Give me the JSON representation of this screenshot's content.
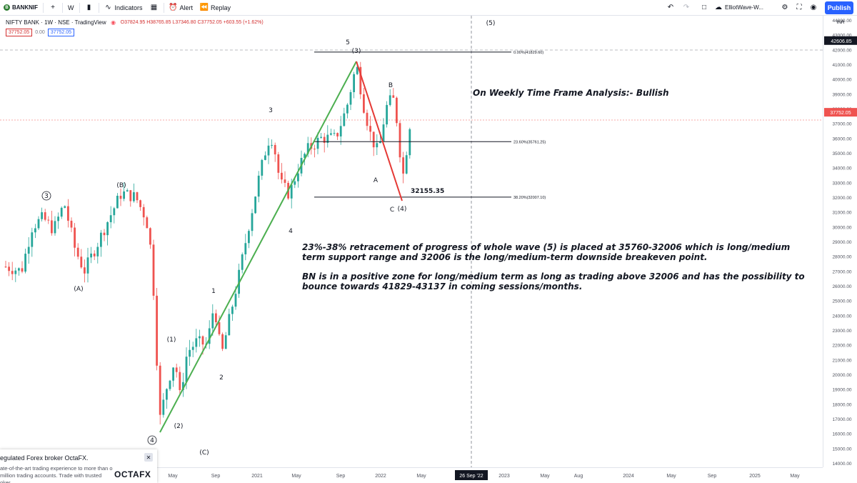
{
  "toolbar": {
    "symbol": "BANKNIF",
    "add_symbol": "+",
    "interval": "W",
    "indicators_label": "Indicators",
    "alert_label": "Alert",
    "replay_label": "Replay",
    "layout_name": "ElliotWave-W...",
    "publish_label": "Publish"
  },
  "legend": {
    "title": "NIFTY BANK · 1W · NSE · TradingView",
    "ohlc": "O37824.95 H38765.85 L37346.80 C37752.05 +603.55 (+1.62%)",
    "price_sell": "37752.05",
    "spread": "0.00",
    "price_buy": "37752.05"
  },
  "yaxis": {
    "currency": "INR",
    "ticks": [
      "44000.00",
      "43000.00",
      "42000.00",
      "41000.00",
      "40000.00",
      "39000.00",
      "38000.00",
      "37000.00",
      "36000.00",
      "35000.00",
      "34000.00",
      "33000.00",
      "32000.00",
      "31000.00",
      "30000.00",
      "29000.00",
      "28000.00",
      "27000.00",
      "26000.00",
      "25000.00",
      "24000.00",
      "23000.00",
      "22000.00",
      "21000.00",
      "20000.00",
      "19000.00",
      "18000.00",
      "17000.00",
      "16000.00",
      "15000.00",
      "14000.00"
    ],
    "last_price": "37752.05",
    "crosshair_price": "42606.85"
  },
  "xaxis": {
    "ticks": [
      {
        "label": "May",
        "x": 242
      },
      {
        "label": "Sep",
        "x": 302
      },
      {
        "label": "2021",
        "x": 360
      },
      {
        "label": "May",
        "x": 415
      },
      {
        "label": "Sep",
        "x": 477
      },
      {
        "label": "2022",
        "x": 533
      },
      {
        "label": "May",
        "x": 590
      },
      {
        "label": "2023",
        "x": 706
      },
      {
        "label": "May",
        "x": 763
      },
      {
        "label": "Aug",
        "x": 810
      },
      {
        "label": "2024",
        "x": 880
      },
      {
        "label": "May",
        "x": 940
      },
      {
        "label": "Sep",
        "x": 997
      },
      {
        "label": "2025",
        "x": 1057
      },
      {
        "label": "May",
        "x": 1113
      }
    ],
    "crosshair_date": "26 Sep '22"
  },
  "chart_data": {
    "type": "candlestick",
    "title": "NIFTY BANK · 1W · NSE",
    "ylim": [
      14000,
      44000
    ],
    "fib_levels": [
      {
        "label": "0.00%(41829.60)",
        "value": 41829.6
      },
      {
        "label": "23.60%(35761.25)",
        "value": 35761.25
      },
      {
        "label": "38.20%(32007.10)",
        "value": 32007.1
      }
    ],
    "wave_labels": [
      "(1)",
      "(2)",
      "(3)",
      "(4)",
      "(5)",
      "(A)",
      "(B)",
      "(C)",
      "1",
      "2",
      "3",
      "4",
      "5",
      "A",
      "B",
      "C",
      "3",
      "4"
    ],
    "low_label": "32155.35",
    "colors": {
      "up": "#26a69a",
      "down": "#ef5350",
      "trend_up": "#4caf50",
      "trend_down": "#e53935"
    }
  },
  "annotations": {
    "headline": "On Weekly Time Frame Analysis:-  Bullish",
    "para1": "23%-38% retracement of progress of whole wave (5) is placed at 35760-32006 which is long/medium term support range and 32006 is the long/medium-term downside breakeven point.",
    "para2": "BN is in a positive zone for long/medium term as long as trading above 32006 and has the possibility to bounce towards 41829-43137 in coming sessions/months."
  },
  "ad": {
    "title": "egulated Forex broker OctaFX.",
    "body": "ate-of-the-art trading experience to more than o million trading accounts. Trade with trusted oker.",
    "logo": "OCTAFX",
    "close": "✕"
  }
}
